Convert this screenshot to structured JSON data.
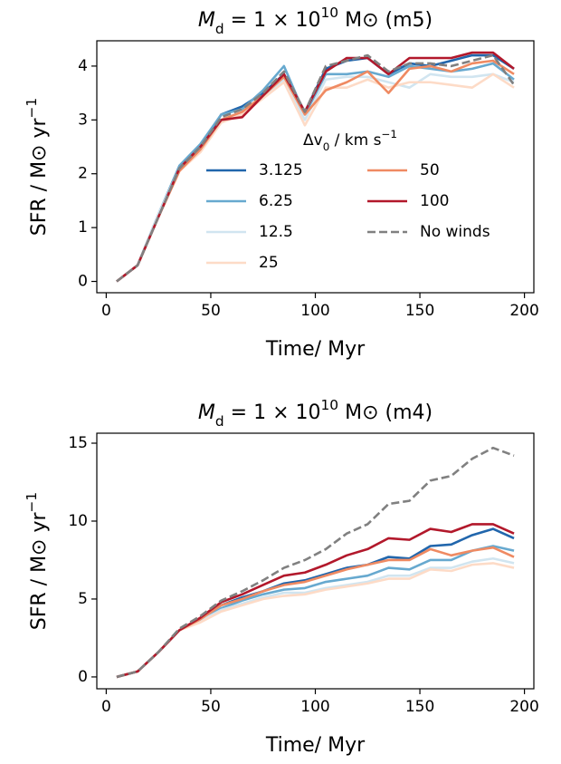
{
  "chart_data": [
    {
      "type": "line",
      "title": [
        "M",
        "d",
        " = 1 × 10",
        "10",
        " M⊙ (m5)"
      ],
      "xlabel": "Time/ Myr",
      "ylabel": [
        "SFR / M⊙ yr",
        "−1"
      ],
      "legend_title": [
        "Δv",
        "0",
        " / km s",
        "−1"
      ],
      "legend": "center right",
      "xlim": [
        -4.5,
        204.5
      ],
      "xticks": [
        0,
        50,
        100,
        150,
        200
      ],
      "ylim": [
        -0.21,
        4.47
      ],
      "yticks": [
        0,
        1,
        2,
        3,
        4
      ],
      "x": [
        5,
        15,
        25,
        35,
        45,
        55,
        65,
        75,
        85,
        95,
        105,
        115,
        125,
        135,
        145,
        155,
        165,
        175,
        185,
        195
      ],
      "series": [
        {
          "name": "3.125",
          "color": "#2166ac",
          "values": [
            0,
            0.3,
            1.25,
            2.1,
            2.5,
            3.1,
            3.25,
            3.5,
            3.85,
            3.15,
            3.95,
            4.1,
            4.15,
            3.85,
            4.05,
            4.0,
            4.1,
            4.2,
            4.2,
            3.95
          ]
        },
        {
          "name": "6.25",
          "color": "#67a9cf",
          "values": [
            0,
            0.3,
            1.25,
            2.15,
            2.55,
            3.1,
            3.2,
            3.55,
            4.0,
            3.1,
            3.85,
            3.85,
            3.9,
            3.8,
            4.0,
            3.95,
            3.9,
            3.95,
            4.05,
            3.75
          ]
        },
        {
          "name": "12.5",
          "color": "#d1e5f0",
          "values": [
            0,
            0.3,
            1.25,
            2.1,
            2.45,
            3.0,
            3.15,
            3.45,
            3.75,
            3.0,
            3.75,
            3.8,
            3.8,
            3.7,
            3.6,
            3.85,
            3.8,
            3.8,
            3.85,
            3.7
          ]
        },
        {
          "name": "25",
          "color": "#fddbc7",
          "values": [
            0,
            0.3,
            1.2,
            2.05,
            2.4,
            2.95,
            3.1,
            3.4,
            3.7,
            2.9,
            3.6,
            3.6,
            3.75,
            3.6,
            3.7,
            3.7,
            3.65,
            3.6,
            3.85,
            3.6
          ]
        },
        {
          "name": "50",
          "color": "#ef8a62",
          "values": [
            0,
            0.3,
            1.2,
            2.05,
            2.45,
            3.0,
            3.15,
            3.45,
            3.8,
            3.1,
            3.55,
            3.7,
            3.9,
            3.5,
            3.95,
            4.0,
            3.9,
            4.05,
            4.1,
            3.85
          ]
        },
        {
          "name": "100",
          "color": "#b2182b",
          "values": [
            0,
            0.3,
            1.2,
            2.1,
            2.5,
            3.0,
            3.05,
            3.45,
            3.85,
            3.15,
            3.9,
            4.15,
            4.15,
            3.85,
            4.15,
            4.15,
            4.15,
            4.25,
            4.25,
            3.95
          ]
        },
        {
          "name": "No winds",
          "color": "#808080",
          "dashed": true,
          "values": [
            0,
            0.3,
            1.2,
            2.1,
            2.5,
            3.05,
            3.2,
            3.5,
            3.9,
            3.15,
            4.0,
            4.1,
            4.2,
            3.9,
            4.05,
            4.05,
            4.0,
            4.1,
            4.2,
            3.65
          ]
        }
      ]
    },
    {
      "type": "line",
      "title": [
        "M",
        "d",
        " = 1 × 10",
        "10",
        " M⊙ (m4)"
      ],
      "xlabel": "Time/ Myr",
      "ylabel": [
        "SFR / M⊙ yr",
        "−1"
      ],
      "xlim": [
        -4.5,
        204.5
      ],
      "xticks": [
        0,
        50,
        100,
        150,
        200
      ],
      "ylim": [
        -0.76,
        15.64
      ],
      "yticks": [
        0,
        5,
        10,
        15
      ],
      "x": [
        5,
        15,
        25,
        35,
        45,
        55,
        65,
        75,
        85,
        95,
        105,
        115,
        125,
        135,
        145,
        155,
        165,
        175,
        185,
        195
      ],
      "series": [
        {
          "name": "3.125",
          "color": "#2166ac",
          "values": [
            0,
            0.35,
            1.6,
            3.0,
            3.7,
            4.6,
            5.1,
            5.5,
            6.0,
            6.2,
            6.6,
            7.0,
            7.2,
            7.7,
            7.6,
            8.4,
            8.5,
            9.1,
            9.5,
            8.9
          ]
        },
        {
          "name": "6.25",
          "color": "#67a9cf",
          "values": [
            0,
            0.35,
            1.6,
            3.0,
            3.6,
            4.4,
            4.9,
            5.3,
            5.6,
            5.7,
            6.1,
            6.3,
            6.5,
            7.0,
            6.9,
            7.5,
            7.5,
            8.1,
            8.4,
            8.1
          ]
        },
        {
          "name": "12.5",
          "color": "#d1e5f0",
          "values": [
            0,
            0.35,
            1.6,
            3.0,
            3.6,
            4.3,
            4.7,
            5.1,
            5.4,
            5.4,
            5.7,
            5.9,
            6.1,
            6.5,
            6.5,
            7.0,
            7.0,
            7.4,
            7.6,
            7.3
          ]
        },
        {
          "name": "25",
          "color": "#fddbc7",
          "values": [
            0,
            0.35,
            1.6,
            3.0,
            3.5,
            4.2,
            4.6,
            5.0,
            5.2,
            5.3,
            5.6,
            5.8,
            6.0,
            6.3,
            6.3,
            6.9,
            6.8,
            7.2,
            7.3,
            7.0
          ]
        },
        {
          "name": "50",
          "color": "#ef8a62",
          "values": [
            0,
            0.35,
            1.6,
            3.0,
            3.7,
            4.6,
            5.0,
            5.5,
            5.9,
            6.1,
            6.5,
            6.9,
            7.2,
            7.5,
            7.5,
            8.2,
            7.8,
            8.1,
            8.3,
            7.7
          ]
        },
        {
          "name": "100",
          "color": "#b2182b",
          "values": [
            0,
            0.35,
            1.6,
            3.0,
            3.8,
            4.8,
            5.3,
            5.9,
            6.5,
            6.7,
            7.2,
            7.8,
            8.2,
            8.9,
            8.8,
            9.5,
            9.3,
            9.8,
            9.8,
            9.2
          ]
        },
        {
          "name": "No winds",
          "color": "#808080",
          "dashed": true,
          "values": [
            0,
            0.35,
            1.6,
            3.1,
            3.9,
            4.9,
            5.5,
            6.2,
            7.0,
            7.5,
            8.2,
            9.2,
            9.8,
            11.1,
            11.3,
            12.6,
            12.9,
            14.0,
            14.7,
            14.2
          ]
        }
      ]
    }
  ]
}
